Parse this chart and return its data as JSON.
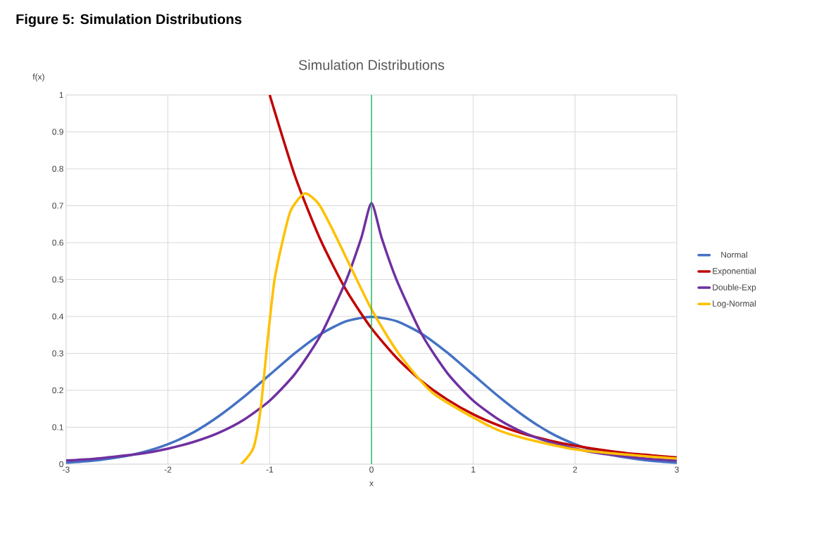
{
  "chart_data": {
    "type": "line",
    "title": "Figure 5:  Simulation Distributions",
    "subtitle": "Simulation Distributions",
    "xlabel": "x",
    "ylabel": "f(x)",
    "xlim": [
      -3,
      3
    ],
    "ylim": [
      0,
      1
    ],
    "xticks": [
      -3,
      -2,
      -1,
      0,
      1,
      2,
      3
    ],
    "yticks": [
      0,
      0.1,
      0.2,
      0.3,
      0.4,
      0.5,
      0.6,
      0.7,
      0.8,
      0.9,
      1
    ],
    "grid": true,
    "legend": "right",
    "marker": "none",
    "line_style": "solid",
    "ref_lines": [
      {
        "axis": "x",
        "value": 0,
        "color": "#00b050"
      }
    ],
    "series": [
      {
        "name": "Normal",
        "color": "#4472c4",
        "x": [
          -3,
          -2.75,
          -2.5,
          -2.25,
          -2,
          -1.75,
          -1.5,
          -1.25,
          -1,
          -0.75,
          -0.5,
          -0.25,
          0,
          0.25,
          0.5,
          0.75,
          1,
          1.25,
          1.5,
          1.75,
          2,
          2.25,
          2.5,
          2.75,
          3
        ],
        "values": [
          0.004,
          0.009,
          0.018,
          0.032,
          0.054,
          0.086,
          0.13,
          0.183,
          0.242,
          0.301,
          0.352,
          0.387,
          0.399,
          0.387,
          0.352,
          0.301,
          0.242,
          0.183,
          0.13,
          0.086,
          0.054,
          0.032,
          0.018,
          0.009,
          0.004
        ]
      },
      {
        "name": "Exponential",
        "color": "#c00000",
        "x": [
          -1,
          -0.75,
          -0.5,
          -0.25,
          0,
          0.25,
          0.5,
          0.75,
          1,
          1.25,
          1.5,
          1.75,
          2,
          2.25,
          2.5,
          2.75,
          3
        ],
        "values": [
          1,
          0.779,
          0.607,
          0.472,
          0.368,
          0.287,
          0.223,
          0.174,
          0.135,
          0.105,
          0.082,
          0.064,
          0.05,
          0.039,
          0.03,
          0.024,
          0.018
        ]
      },
      {
        "name": "Double-Exp",
        "color": "#7030a0",
        "x": [
          -3,
          -2.75,
          -2.5,
          -2.25,
          -2,
          -1.75,
          -1.5,
          -1.25,
          -1,
          -0.75,
          -0.5,
          -0.25,
          -0.1,
          0,
          0.1,
          0.25,
          0.5,
          0.75,
          1,
          1.25,
          1.5,
          1.75,
          2,
          2.25,
          2.5,
          2.75,
          3
        ],
        "values": [
          0.01,
          0.014,
          0.021,
          0.029,
          0.042,
          0.06,
          0.085,
          0.121,
          0.172,
          0.245,
          0.349,
          0.497,
          0.613,
          0.707,
          0.613,
          0.497,
          0.349,
          0.245,
          0.172,
          0.121,
          0.085,
          0.06,
          0.042,
          0.029,
          0.021,
          0.014,
          0.01
        ]
      },
      {
        "name": "Log-Normal",
        "color": "#ffc000",
        "x": [
          -1.28,
          -1.16,
          -1.09,
          -1.02,
          -0.955,
          -0.885,
          -0.795,
          -0.657,
          -0.519,
          -0.38,
          -0.194,
          0.013,
          0.269,
          0.614,
          1.188,
          1.5,
          2,
          2.5,
          3
        ],
        "values": [
          0,
          0.044,
          0.147,
          0.337,
          0.495,
          0.59,
          0.686,
          0.733,
          0.705,
          0.634,
          0.528,
          0.413,
          0.299,
          0.19,
          0.099,
          0.07,
          0.04,
          0.026,
          0.015
        ]
      }
    ]
  }
}
